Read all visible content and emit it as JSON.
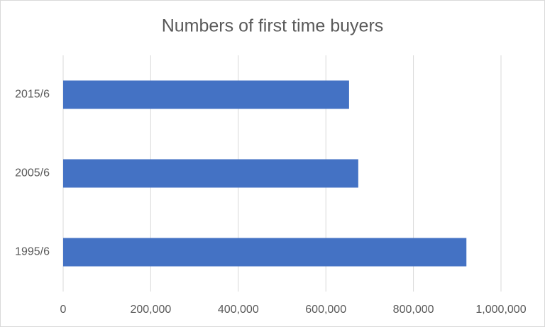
{
  "chart_data": {
    "type": "bar",
    "orientation": "horizontal",
    "title": "Numbers of first time buyers",
    "categories": [
      "1995/6",
      "2005/6",
      "2015/6"
    ],
    "values": [
      921000,
      674000,
      653000
    ],
    "color": "#4472c4",
    "xlim": [
      0,
      1000000
    ],
    "xticks": [
      0,
      {
        "value": 200000,
        "label": "200,000"
      },
      {
        "value": 400000,
        "label": "400,000"
      },
      {
        "value": 600000,
        "label": "600,000"
      },
      {
        "value": 800000,
        "label": "800,000"
      },
      {
        "value": 1000000,
        "label": "1,000,000"
      }
    ],
    "grid": true
  }
}
